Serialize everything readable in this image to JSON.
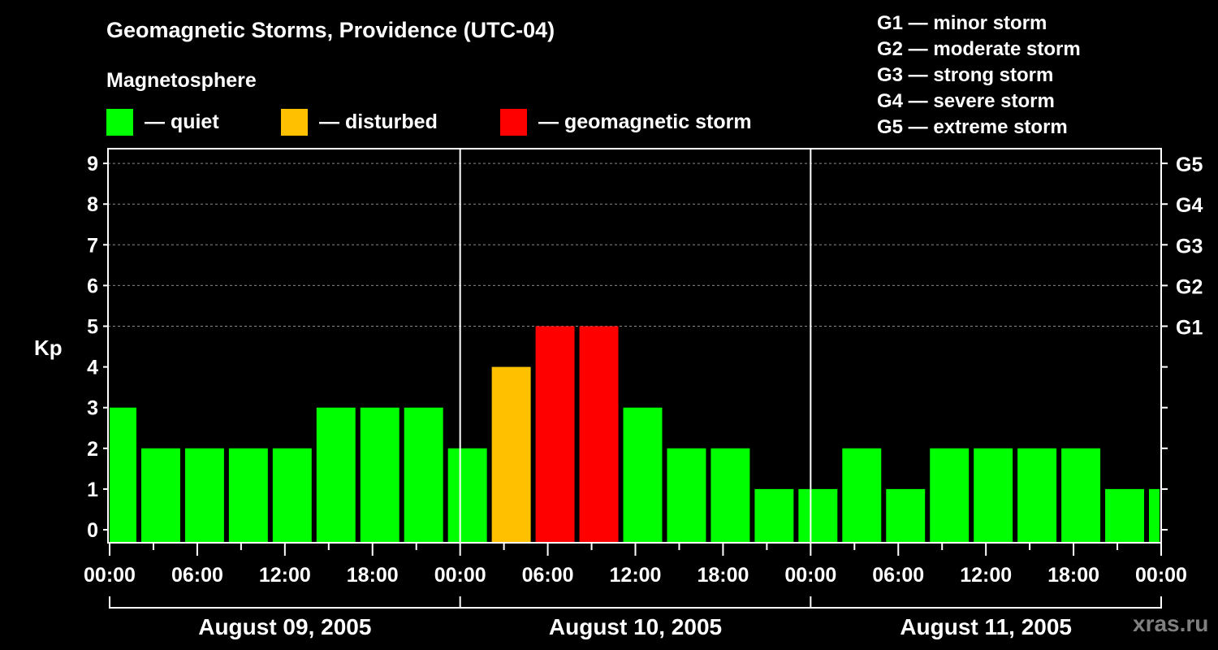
{
  "title": "Geomagnetic Storms, Providence (UTC-04)",
  "legend_title": "Magnetosphere",
  "legend": [
    {
      "label": "— quiet",
      "color": "#00ff00"
    },
    {
      "label": "— disturbed",
      "color": "#ffc000"
    },
    {
      "label": "— geomagnetic storm",
      "color": "#ff0000"
    }
  ],
  "g_scale": [
    "G1 — minor storm",
    "G2 — moderate storm",
    "G3 — strong storm",
    "G4 — severe storm",
    "G5 — extreme storm"
  ],
  "watermark": "xras.ru",
  "chart_data": {
    "type": "bar",
    "title": "Geomagnetic Storms, Providence (UTC-04)",
    "ylabel": "Kp",
    "ylim": [
      0,
      9
    ],
    "yticks": [
      "0",
      "1",
      "2",
      "3",
      "4",
      "5",
      "6",
      "7",
      "8",
      "9"
    ],
    "right_ticks": {
      "5": "G1",
      "6": "G2",
      "7": "G3",
      "8": "G4",
      "9": "G5"
    },
    "xlim_hours": [
      0,
      72
    ],
    "xtick_labels": [
      "00:00",
      "06:00",
      "12:00",
      "18:00",
      "00:00",
      "06:00",
      "12:00",
      "18:00",
      "00:00",
      "06:00",
      "12:00",
      "18:00",
      "00:00"
    ],
    "days": [
      "August 09, 2005",
      "August 10, 2005",
      "August 11, 2005"
    ],
    "bar_start_hours": [
      -1,
      2,
      5,
      8,
      11,
      14,
      17,
      20,
      23,
      26,
      29,
      32,
      35,
      38,
      41,
      44,
      47,
      50,
      53,
      56,
      59,
      62,
      65,
      68,
      71
    ],
    "bar_hours": 3,
    "values": [
      3,
      2,
      2,
      2,
      2,
      3,
      3,
      3,
      2,
      4,
      5,
      5,
      3,
      2,
      2,
      1,
      1,
      2,
      1,
      2,
      2,
      2,
      2,
      1,
      1
    ],
    "colors": {
      "quiet": "#00ff00",
      "disturbed": "#ffc000",
      "storm": "#ff0000"
    },
    "grid": "dashed at Kp 5-9"
  }
}
